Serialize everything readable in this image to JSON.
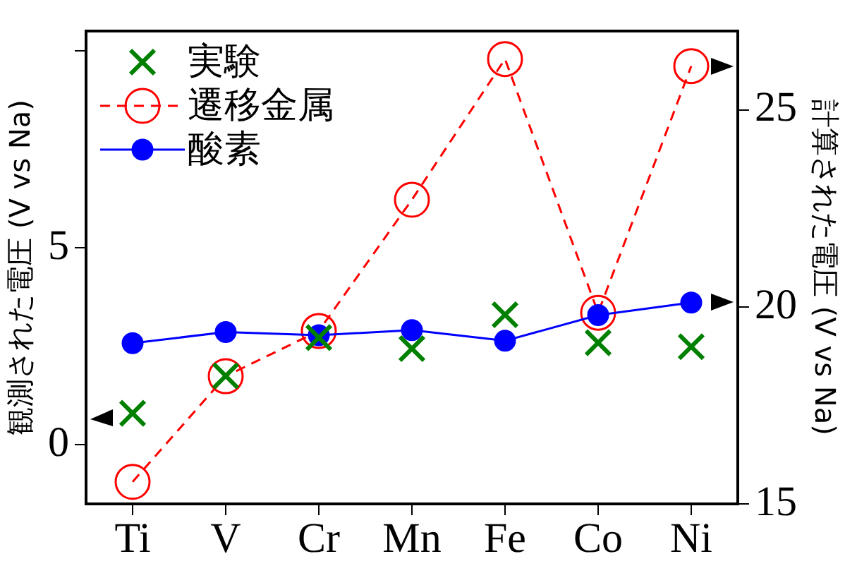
{
  "chart_data": {
    "type": "line",
    "ylabel": "観測された電圧 (V vs Na)",
    "y2label": "計算された電圧 (V vs Na)",
    "categories": [
      "Ti",
      "V",
      "Cr",
      "Mn",
      "Fe",
      "Co",
      "Ni"
    ],
    "series": [
      {
        "name": "実験",
        "type": "scatter",
        "color": "#008000",
        "marker": "cross",
        "axis": "y",
        "values": [
          0.8,
          1.75,
          2.72,
          2.44,
          3.3,
          2.59,
          2.49
        ]
      },
      {
        "name": "遷移金属",
        "color": "#ff0000",
        "marker": "circle",
        "line_style": "dashed",
        "axis": "y2",
        "values": [
          15.56,
          18.24,
          19.39,
          22.72,
          26.29,
          19.85,
          26.11
        ]
      },
      {
        "name": "酸素",
        "color": "#0000ff",
        "marker": "circle",
        "line_style": "solid",
        "axis": "y2",
        "values": [
          19.08,
          19.36,
          19.28,
          19.41,
          19.14,
          19.79,
          20.11
        ]
      }
    ],
    "ylim": [
      -1.5,
      10.5
    ],
    "yticks": [
      0,
      5,
      {
        "value": 10,
        "label": null
      }
    ],
    "y2lim": [
      15,
      27
    ],
    "y2ticks": [
      15,
      20,
      25
    ],
    "grid": false,
    "legend": "top left"
  }
}
